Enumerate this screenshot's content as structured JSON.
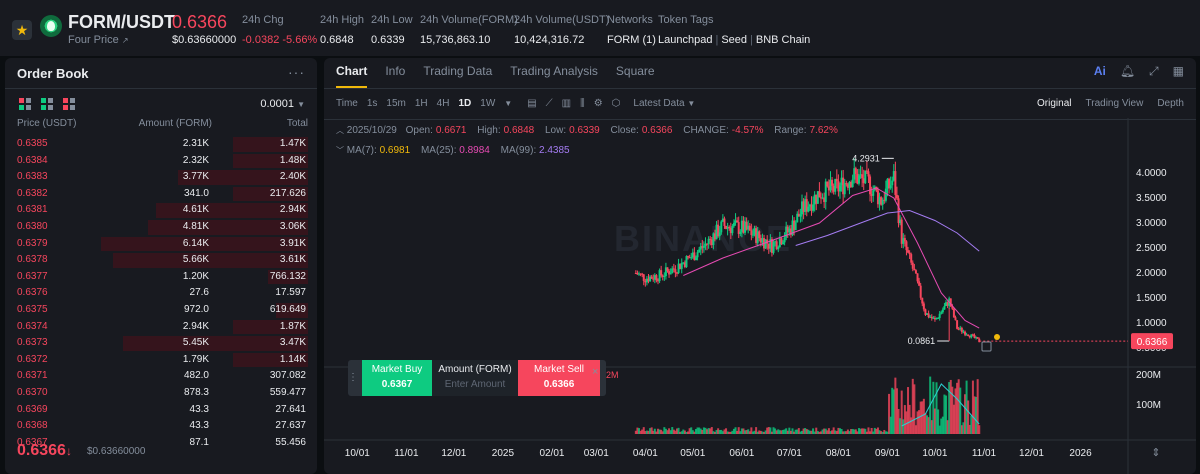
{
  "header": {
    "pair": "FORM/USDT",
    "sub_label": "Four Price",
    "last_price": "0.6366",
    "last_price_usd": "$0.63660000",
    "stats": [
      {
        "label": "24h Chg",
        "value": "-0.0382 -5.66%",
        "negative": true
      },
      {
        "label": "24h High",
        "value": "0.6848"
      },
      {
        "label": "24h Low",
        "value": "0.6339"
      },
      {
        "label": "24h Volume(FORM)",
        "value": "15,736,863.10"
      },
      {
        "label": "24h Volume(USDT)",
        "value": "10,424,316.72"
      },
      {
        "label": "Networks",
        "value": "FORM (1)"
      }
    ],
    "token_tags_label": "Token Tags",
    "token_tags": [
      "Launchpad",
      "Seed",
      "BNB Chain"
    ]
  },
  "order_book": {
    "title": "Order Book",
    "precision": "0.0001",
    "columns": [
      "Price (USDT)",
      "Amount (FORM)",
      "Total"
    ],
    "asks": [
      {
        "price": "0.6385",
        "amount": "2.31K",
        "total": "1.47K",
        "depth": 0.3
      },
      {
        "price": "0.6384",
        "amount": "2.32K",
        "total": "1.48K",
        "depth": 0.3
      },
      {
        "price": "0.6383",
        "amount": "3.77K",
        "total": "2.40K",
        "depth": 0.52
      },
      {
        "price": "0.6382",
        "amount": "341.0",
        "total": "217.626",
        "depth": 0.3
      },
      {
        "price": "0.6381",
        "amount": "4.61K",
        "total": "2.94K",
        "depth": 0.61
      },
      {
        "price": "0.6380",
        "amount": "4.81K",
        "total": "3.06K",
        "depth": 0.64
      },
      {
        "price": "0.6379",
        "amount": "6.14K",
        "total": "3.91K",
        "depth": 0.83
      },
      {
        "price": "0.6378",
        "amount": "5.66K",
        "total": "3.61K",
        "depth": 0.78
      },
      {
        "price": "0.6377",
        "amount": "1.20K",
        "total": "766.132",
        "depth": 0.16
      },
      {
        "price": "0.6376",
        "amount": "27.6",
        "total": "17.597",
        "depth": 0
      },
      {
        "price": "0.6375",
        "amount": "972.0",
        "total": "619.649",
        "depth": 0.13
      },
      {
        "price": "0.6374",
        "amount": "2.94K",
        "total": "1.87K",
        "depth": 0.3
      },
      {
        "price": "0.6373",
        "amount": "5.45K",
        "total": "3.47K",
        "depth": 0.74
      },
      {
        "price": "0.6372",
        "amount": "1.79K",
        "total": "1.14K",
        "depth": 0.3
      },
      {
        "price": "0.6371",
        "amount": "482.0",
        "total": "307.082",
        "depth": 0
      },
      {
        "price": "0.6370",
        "amount": "878.3",
        "total": "559.477",
        "depth": 0
      },
      {
        "price": "0.6369",
        "amount": "43.3",
        "total": "27.641",
        "depth": 0
      },
      {
        "price": "0.6368",
        "amount": "43.3",
        "total": "27.637",
        "depth": 0
      },
      {
        "price": "0.6367",
        "amount": "87.1",
        "total": "55.456",
        "depth": 0
      }
    ],
    "mid_price": "0.6366",
    "mid_arrow": "↓",
    "mid_usd": "$0.63660000"
  },
  "chart_panel": {
    "tabs": [
      "Chart",
      "Info",
      "Trading Data",
      "Trading Analysis",
      "Square"
    ],
    "active_tab": "Chart",
    "ai_label": "Ai",
    "toolbar": {
      "time_label": "Time",
      "intervals": [
        "1s",
        "15m",
        "1H",
        "4H",
        "1D",
        "1W"
      ],
      "active_interval": "1D",
      "data_mode": "Latest Data",
      "views": [
        "Original",
        "Trading View",
        "Depth"
      ],
      "active_view": "Original"
    },
    "ohlc": {
      "date": "2025/10/29",
      "open_label": "Open:",
      "open": "0.6671",
      "high_label": "High:",
      "high": "0.6848",
      "low_label": "Low:",
      "low": "0.6339",
      "close_label": "Close:",
      "close": "0.6366",
      "change_label": "CHANGE:",
      "change": "-4.57%",
      "range_label": "Range:",
      "range": "7.62%"
    },
    "ma": {
      "ma7_label": "MA(7):",
      "ma7": "0.6981",
      "ma25_label": "MA(25):",
      "ma25": "0.8984",
      "ma99_label": "MA(99):",
      "ma99": "2.4385"
    },
    "watermark": "BINANCE",
    "trade_widget": {
      "buy_label": "Market Buy",
      "buy_price": "0.6367",
      "amount_label": "Amount (FORM)",
      "amount_placeholder": "Enter Amount",
      "sell_label": "Market Sell",
      "sell_price": "0.6366",
      "behind_text": "2M"
    }
  },
  "chart_data": {
    "type": "candlestick",
    "price_axis": {
      "ticks": [
        "4.0000",
        "3.5000",
        "3.0000",
        "2.5000",
        "2.0000",
        "1.5000",
        "1.0000",
        "0.5000"
      ],
      "ylim": [
        0.3,
        4.5
      ]
    },
    "current_price_label": "0.6366",
    "max_marker": "4.2931",
    "min_marker": "0.0861",
    "volume_axis": {
      "ticks": [
        "200M",
        "100M"
      ]
    },
    "x_ticks": [
      "10/01",
      "11/01",
      "12/01",
      "2025",
      "02/01",
      "03/01",
      "04/01",
      "05/01",
      "06/01",
      "07/01",
      "08/01",
      "09/01",
      "10/01",
      "11/01",
      "12/01",
      "2026"
    ],
    "price_series": [
      [
        "2025-03-26",
        2.0
      ],
      [
        "2025-04-01",
        1.9
      ],
      [
        "2025-04-10",
        1.95
      ],
      [
        "2025-04-20",
        2.1
      ],
      [
        "2025-05-01",
        2.35
      ],
      [
        "2025-05-10",
        2.6
      ],
      [
        "2025-05-20",
        2.95
      ],
      [
        "2025-06-01",
        2.9
      ],
      [
        "2025-06-10",
        2.75
      ],
      [
        "2025-06-20",
        2.55
      ],
      [
        "2025-07-01",
        2.85
      ],
      [
        "2025-07-10",
        3.3
      ],
      [
        "2025-07-20",
        3.6
      ],
      [
        "2025-08-01",
        3.7
      ],
      [
        "2025-08-10",
        3.95
      ],
      [
        "2025-08-20",
        3.8
      ],
      [
        "2025-08-28",
        3.45
      ],
      [
        "2025-09-05",
        3.9
      ],
      [
        "2025-09-10",
        2.7
      ],
      [
        "2025-09-18",
        2.0
      ],
      [
        "2025-09-25",
        1.2
      ],
      [
        "2025-10-01",
        1.05
      ],
      [
        "2025-10-10",
        1.45
      ],
      [
        "2025-10-15",
        0.9
      ],
      [
        "2025-10-22",
        0.78
      ],
      [
        "2025-10-29",
        0.6366
      ]
    ],
    "ma25_series": [
      [
        "2025-04-25",
        1.95
      ],
      [
        "2025-05-20",
        2.3
      ],
      [
        "2025-06-20",
        2.65
      ],
      [
        "2025-07-20",
        3.0
      ],
      [
        "2025-08-10",
        3.55
      ],
      [
        "2025-08-25",
        3.7
      ],
      [
        "2025-09-05",
        3.5
      ],
      [
        "2025-09-20",
        2.6
      ],
      [
        "2025-10-05",
        1.6
      ],
      [
        "2025-10-20",
        1.05
      ],
      [
        "2025-10-29",
        0.8984
      ]
    ],
    "ma99_series": [
      [
        "2025-07-05",
        2.55
      ],
      [
        "2025-07-25",
        2.75
      ],
      [
        "2025-08-15",
        3.0
      ],
      [
        "2025-09-01",
        3.2
      ],
      [
        "2025-09-15",
        3.25
      ],
      [
        "2025-10-01",
        3.05
      ],
      [
        "2025-10-15",
        2.8
      ],
      [
        "2025-10-29",
        2.4385
      ]
    ]
  }
}
